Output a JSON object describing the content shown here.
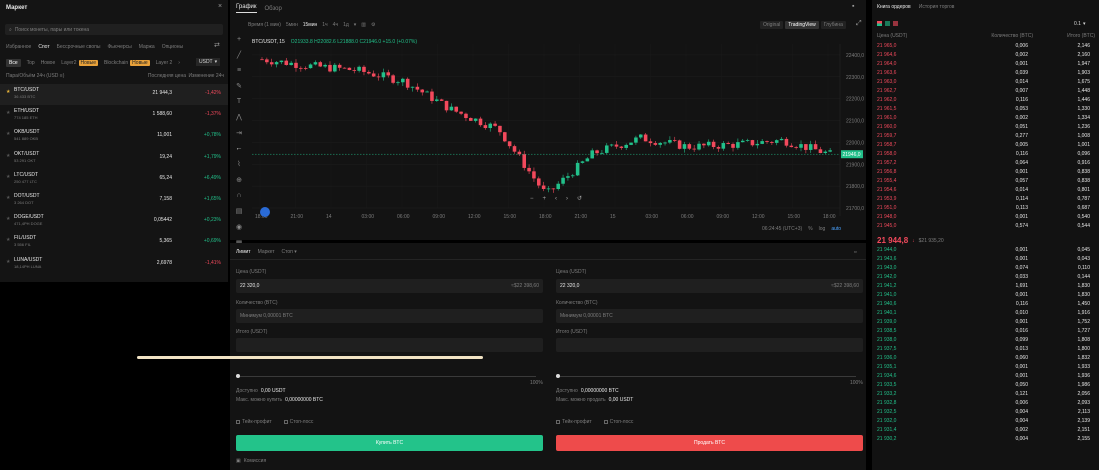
{
  "market": {
    "title": "Маркет",
    "search_placeholder": "Поиск монеты, пары или токена",
    "tabs": [
      "Избранное",
      "Спот",
      "Бессрочные свопы",
      "Фьючерсы",
      "Маржа",
      "Опционы"
    ],
    "subtabs": [
      "Все",
      "Top",
      "Новое",
      "Layer2",
      "Новые",
      "Blockchain",
      "Новые",
      "Layer 2"
    ],
    "quote": "USDT",
    "columns": [
      "Пара/Объём 24ч (USD ≡)",
      "Последняя цена",
      "Изменение 24ч"
    ],
    "pairs": [
      {
        "pair": "BTC/USDT",
        "vol": "36 433 BTC",
        "price": "21 944,3",
        "change": "-1,42%",
        "up": false
      },
      {
        "pair": "ETH/USDT",
        "vol": "774 185 ETH",
        "price": "1 588,60",
        "change": "-1,37%",
        "up": false
      },
      {
        "pair": "OKB/USDT",
        "vol": "541 889 OKB",
        "price": "11,001",
        "change": "+0,78%",
        "up": true
      },
      {
        "pair": "OKT/USDT",
        "vol": "53 291 OKT",
        "price": "19,24",
        "change": "+1,79%",
        "up": true
      },
      {
        "pair": "LTC/USDT",
        "vol": "250 477 LTC",
        "price": "65,24",
        "change": "+6,49%",
        "up": true
      },
      {
        "pair": "DOT/USDT",
        "vol": "3 264 DOT",
        "price": "7,158",
        "change": "+1,65%",
        "up": true
      },
      {
        "pair": "DOGE/USDT",
        "vol": "471,4PH DOGE",
        "price": "0,05442",
        "change": "+0,23%",
        "up": true
      },
      {
        "pair": "FIL/USDT",
        "vol": "3 556 FIL",
        "price": "5,365",
        "change": "+0,69%",
        "up": true
      },
      {
        "pair": "LUNA/USDT",
        "vol": "18,14PH LUNA",
        "price": "2,6978",
        "change": "-1,41%",
        "up": false
      }
    ]
  },
  "chart": {
    "tabs": [
      "График",
      "Обзор"
    ],
    "toolbar": [
      "Время (1 мин)",
      "5мин",
      "15мин",
      "1ч",
      "4ч",
      "1д"
    ],
    "views": [
      "Original",
      "TradingView",
      "Глубина"
    ],
    "symbol": "BTC/USDT, 15",
    "ohlc": "O21933.8 H22082.6 L21888.0 C21946.0 +15.0 (+0.07%)",
    "price_axis": [
      "22400,0",
      "22300,0",
      "22200,0",
      "22100,0",
      "22000,0",
      "21900,0",
      "21800,0",
      "21700,0"
    ],
    "current_price_tag": "21946,0",
    "time_axis": [
      "18:00",
      "21:00",
      "14",
      "03:00",
      "06:00",
      "09:00",
      "12:00",
      "15:00",
      "18:00",
      "21:00",
      "15",
      "03:00",
      "06:00",
      "09:00",
      "12:00",
      "15:00",
      "18:00"
    ],
    "footer_time": "06:24:45 (UTC+3)",
    "footer_opts": [
      "%",
      "log",
      "auto"
    ]
  },
  "order": {
    "tabs": [
      "Лимит",
      "Маркет",
      "Стоп"
    ],
    "buy": {
      "price_label": "Цена (USDT)",
      "price_value": "22 320,0",
      "price_hint": "≈$22 398,60",
      "qty_label": "Количество (BTC)",
      "qty_placeholder": "Минимум 0,00001 BTC",
      "total_label": "Итого (USDT)",
      "avail_label": "Доступно",
      "avail_value": "0,00 USDT",
      "max_label": "Макс. можно купить",
      "max_value": "0,00000000 BTC",
      "tp": "Тейк-профит",
      "sl": "Стоп-лосс",
      "action": "Купить BTC",
      "fees": "Комиссия"
    },
    "sell": {
      "price_label": "Цена (USDT)",
      "price_value": "22 320,0",
      "price_hint": "≈$22 398,60",
      "qty_label": "Количество (BTC)",
      "qty_placeholder": "Минимум 0,00001 BTC",
      "total_label": "Итого (USDT)",
      "avail_label": "Доступно",
      "avail_value": "0,00000000 BTC",
      "max_label": "Макс. можно продать",
      "max_value": "0,00 USDT",
      "tp": "Тейк-профит",
      "sl": "Стоп-лосс",
      "action": "Продать BTC"
    },
    "slider_end": "100%"
  },
  "orderbook": {
    "tabs": [
      "Книга ордеров",
      "История торгов"
    ],
    "step": "0.1",
    "columns": [
      "Цена (USDT)",
      "Количество (BTC)",
      "Итого (BTC)"
    ],
    "mid_price": "21 944,8",
    "mid_usd": "$21 935,20",
    "asks": [
      [
        "21 965,0",
        "0,006",
        "2,146"
      ],
      [
        "21 964,6",
        "0,002",
        "2,160"
      ],
      [
        "21 964,0",
        "0,001",
        "1,947"
      ],
      [
        "21 963,6",
        "0,039",
        "1,903"
      ],
      [
        "21 963,0",
        "0,014",
        "1,675"
      ],
      [
        "21 962,7",
        "0,007",
        "1,448"
      ],
      [
        "21 962,0",
        "0,116",
        "1,446"
      ],
      [
        "21 961,5",
        "0,053",
        "1,330"
      ],
      [
        "21 961,0",
        "0,002",
        "1,334"
      ],
      [
        "21 960,0",
        "0,051",
        "1,236"
      ],
      [
        "21 959,7",
        "0,277",
        "1,008"
      ],
      [
        "21 958,7",
        "0,005",
        "1,001"
      ],
      [
        "21 958,0",
        "0,116",
        "0,096"
      ],
      [
        "21 957,2",
        "0,064",
        "0,916"
      ],
      [
        "21 956,8",
        "0,001",
        "0,838"
      ],
      [
        "21 955,4",
        "0,057",
        "0,838"
      ],
      [
        "21 954,6",
        "0,014",
        "0,801"
      ],
      [
        "21 953,9",
        "0,114",
        "0,787"
      ],
      [
        "21 951,0",
        "0,113",
        "0,687"
      ],
      [
        "21 948,0",
        "0,001",
        "0,540"
      ],
      [
        "21 945,0",
        "0,574",
        "0,544"
      ]
    ],
    "bids": [
      [
        "21 944,0",
        "0,001",
        "0,045"
      ],
      [
        "21 943,6",
        "0,001",
        "0,043"
      ],
      [
        "21 943,0",
        "0,074",
        "0,110"
      ],
      [
        "21 942,0",
        "0,033",
        "0,144"
      ],
      [
        "21 941,2",
        "1,691",
        "1,830"
      ],
      [
        "21 941,0",
        "0,001",
        "1,830"
      ],
      [
        "21 940,6",
        "0,116",
        "1,450"
      ],
      [
        "21 940,1",
        "0,010",
        "1,916"
      ],
      [
        "21 939,0",
        "0,001",
        "1,752"
      ],
      [
        "21 938,5",
        "0,016",
        "1,727"
      ],
      [
        "21 938,0",
        "0,099",
        "1,808"
      ],
      [
        "21 937,5",
        "0,013",
        "1,800"
      ],
      [
        "21 936,0",
        "0,060",
        "1,832"
      ],
      [
        "21 935,1",
        "0,001",
        "1,933"
      ],
      [
        "21 934,6",
        "0,001",
        "1,936"
      ],
      [
        "21 933,5",
        "0,050",
        "1,986"
      ],
      [
        "21 933,2",
        "0,121",
        "2,056"
      ],
      [
        "21 932,8",
        "0,006",
        "2,093"
      ],
      [
        "21 932,5",
        "0,004",
        "2,113"
      ],
      [
        "21 932,0",
        "0,004",
        "2,139"
      ],
      [
        "21 931,4",
        "0,002",
        "2,151"
      ],
      [
        "21 930,2",
        "0,004",
        "2,155"
      ]
    ]
  },
  "colors": {
    "up": "#22c08a",
    "down": "#f2495c",
    "buy_button": "#23c38a",
    "sell_button": "#ee4b4b"
  },
  "chart_data": {
    "type": "line",
    "x": [
      "18:00",
      "21:00",
      "14",
      "03:00",
      "06:00",
      "09:00",
      "12:00",
      "15:00",
      "18:00",
      "21:00",
      "15",
      "03:00",
      "06:00"
    ],
    "series": [
      {
        "values": [
          22380,
          22350,
          22330,
          22280,
          22150,
          22060,
          21760,
          21950,
          22020,
          21980,
          21990,
          22010,
          21946
        ]
      }
    ],
    "ylim": [
      21700,
      22450
    ],
    "grid": true
  }
}
